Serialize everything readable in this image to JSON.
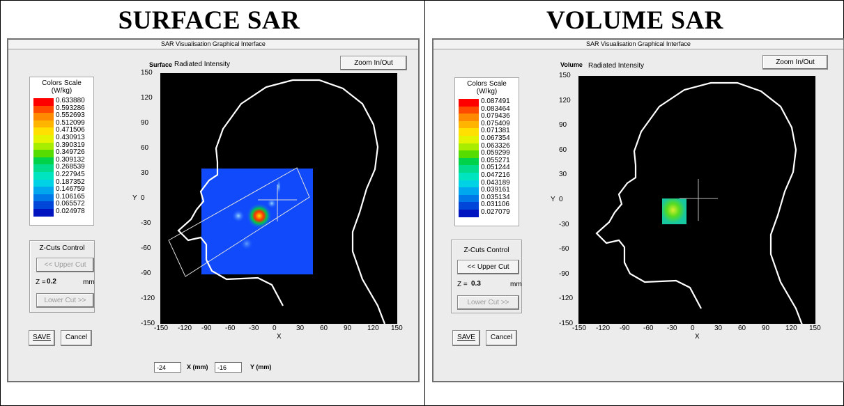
{
  "headings": {
    "left": "SURFACE SAR",
    "right": "VOLUME SAR"
  },
  "window_title": "SAR Visualisation Graphical Interface",
  "zoom_label": "Zoom In/Out",
  "radiated_label": "Radiated Intensity",
  "colors_scale_title": "Colors Scale\n(W/kg)",
  "zcuts_title": "Z-Cuts Control",
  "upper_cut": "<< Upper Cut",
  "lower_cut": "Lower Cut >>",
  "z_prefix": "Z =",
  "mm": "mm",
  "save": "SAVE",
  "cancel": "Cancel",
  "axis": {
    "xlabel": "X",
    "ylabel": "Y",
    "ticks": [
      "-150",
      "-120",
      "-90",
      "-60",
      "-30",
      "0",
      "30",
      "60",
      "90",
      "120",
      "150"
    ]
  },
  "swatch_colors": [
    "#ff0000",
    "#ff4a00",
    "#ff8a00",
    "#ffb400",
    "#ffe000",
    "#e4f400",
    "#a8ec00",
    "#56dc00",
    "#00d24a",
    "#00dc8c",
    "#00e4c0",
    "#00d2e6",
    "#00a6ee",
    "#0078e8",
    "#0046d8",
    "#0014c0"
  ],
  "panels": [
    {
      "mode": "Surface",
      "z_value": "0.2",
      "upper_cut_disabled": true,
      "lower_cut_disabled": true,
      "scale_values": [
        "0.633880",
        "0.593286",
        "0.552693",
        "0.512099",
        "0.471506",
        "0.430913",
        "0.390319",
        "0.349726",
        "0.309132",
        "0.268539",
        "0.227945",
        "0.187352",
        "0.146759",
        "0.106165",
        "0.065572",
        "0.024978"
      ],
      "x_mm": "-24",
      "y_mm": "-16",
      "x_mm_label": "X (mm)",
      "y_mm_label": "Y (mm)"
    },
    {
      "mode": "Volume",
      "z_value": "0.3",
      "upper_cut_disabled": false,
      "lower_cut_disabled": true,
      "scale_values": [
        "0.087491",
        "0.083464",
        "0.079436",
        "0.075409",
        "0.071381",
        "0.067354",
        "0.063326",
        "0.059299",
        "0.055271",
        "0.051244",
        "0.047216",
        "0.043189",
        "0.039161",
        "0.035134",
        "0.031106",
        "0.027079"
      ]
    }
  ]
}
